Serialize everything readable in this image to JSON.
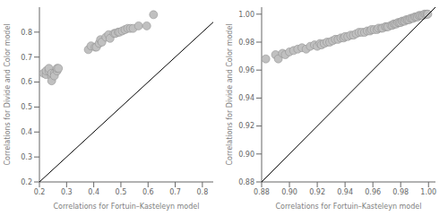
{
  "chart_data": [
    {
      "type": "scatter",
      "xlabel": "Correlations for Fortuin–Kasteleyn model",
      "ylabel": "Correlations for Divide and Color model",
      "xlim": [
        0.2,
        0.84
      ],
      "ylim": [
        0.2,
        0.9
      ],
      "xticks": [
        0.2,
        0.3,
        0.4,
        0.5,
        0.6,
        0.7,
        0.8
      ],
      "yticks": [
        0.2,
        0.3,
        0.4,
        0.5,
        0.6,
        0.7,
        0.8
      ],
      "series": [
        {
          "type": "scatter",
          "color": "#c0c0c0",
          "x": [
            0.215,
            0.225,
            0.225,
            0.235,
            0.235,
            0.245,
            0.245,
            0.245,
            0.255,
            0.255,
            0.265,
            0.265,
            0.27,
            0.38,
            0.39,
            0.405,
            0.41,
            0.42,
            0.425,
            0.43,
            0.445,
            0.455,
            0.46,
            0.475,
            0.48,
            0.49,
            0.495,
            0.505,
            0.515,
            0.525,
            0.535,
            0.545,
            0.565,
            0.595,
            0.62
          ],
          "values": [
            0.635,
            0.63,
            0.645,
            0.645,
            0.655,
            0.625,
            0.635,
            0.605,
            0.635,
            0.625,
            0.645,
            0.655,
            0.655,
            0.73,
            0.745,
            0.74,
            0.74,
            0.755,
            0.77,
            0.76,
            0.78,
            0.79,
            0.775,
            0.795,
            0.795,
            0.8,
            0.8,
            0.805,
            0.81,
            0.815,
            0.815,
            0.815,
            0.825,
            0.825,
            0.87
          ]
        },
        {
          "type": "line",
          "color": "#000000",
          "x": [
            0.2,
            0.9
          ],
          "values": [
            0.2,
            0.9
          ]
        }
      ]
    },
    {
      "type": "scatter",
      "xlabel": "Correlations for Fortuin–Kasteleyn model",
      "ylabel": "Correlations for Divide and Color model",
      "xlim": [
        0.88,
        1.005
      ],
      "ylim": [
        0.88,
        1.005
      ],
      "xticks": [
        0.88,
        {
          "value": 0.9,
          "label": "0.90"
        },
        0.92,
        0.94,
        0.96,
        0.98,
        {
          "value": 1,
          "label": "1.00"
        }
      ],
      "yticks": [
        0.88,
        {
          "value": 0.9,
          "label": "0.90"
        },
        0.92,
        0.94,
        0.96,
        0.98,
        {
          "value": 1,
          "label": "1.00"
        }
      ],
      "series": [
        {
          "type": "scatter",
          "color": "#c0c0c0",
          "x": [
            0.883,
            0.89,
            0.892,
            0.895,
            0.897,
            0.9,
            0.903,
            0.906,
            0.909,
            0.912,
            0.915,
            0.918,
            0.92,
            0.922,
            0.923,
            0.925,
            0.927,
            0.929,
            0.931,
            0.933,
            0.935,
            0.937,
            0.939,
            0.94,
            0.942,
            0.944,
            0.946,
            0.948,
            0.95,
            0.952,
            0.954,
            0.956,
            0.958,
            0.959,
            0.961,
            0.963,
            0.964,
            0.966,
            0.967,
            0.969,
            0.97,
            0.971,
            0.973,
            0.974,
            0.975,
            0.976,
            0.977,
            0.978,
            0.979,
            0.98,
            0.981,
            0.982,
            0.983,
            0.984,
            0.985,
            0.986,
            0.987,
            0.988,
            0.989,
            0.99,
            0.991,
            0.992,
            0.993,
            0.994,
            0.995,
            0.996,
            0.997,
            0.998,
            0.999,
            0.9995
          ],
          "values": [
            0.968,
            0.971,
            0.968,
            0.972,
            0.971,
            0.973,
            0.974,
            0.975,
            0.976,
            0.975,
            0.977,
            0.978,
            0.977,
            0.979,
            0.978,
            0.979,
            0.98,
            0.98,
            0.981,
            0.982,
            0.982,
            0.983,
            0.983,
            0.984,
            0.984,
            0.985,
            0.985,
            0.986,
            0.987,
            0.987,
            0.987,
            0.988,
            0.988,
            0.989,
            0.989,
            0.989,
            0.99,
            0.99,
            0.99,
            0.991,
            0.991,
            0.991,
            0.992,
            0.992,
            0.993,
            0.993,
            0.993,
            0.994,
            0.994,
            0.994,
            0.995,
            0.995,
            0.995,
            0.996,
            0.996,
            0.996,
            0.997,
            0.997,
            0.997,
            0.998,
            0.998,
            0.998,
            0.999,
            0.999,
            0.999,
            0.999,
            1.0,
            1.0,
            1.0,
            1.0
          ]
        },
        {
          "type": "line",
          "color": "#000000",
          "x": [
            0.88,
            1.005
          ],
          "values": [
            0.88,
            1.005
          ]
        }
      ]
    }
  ]
}
